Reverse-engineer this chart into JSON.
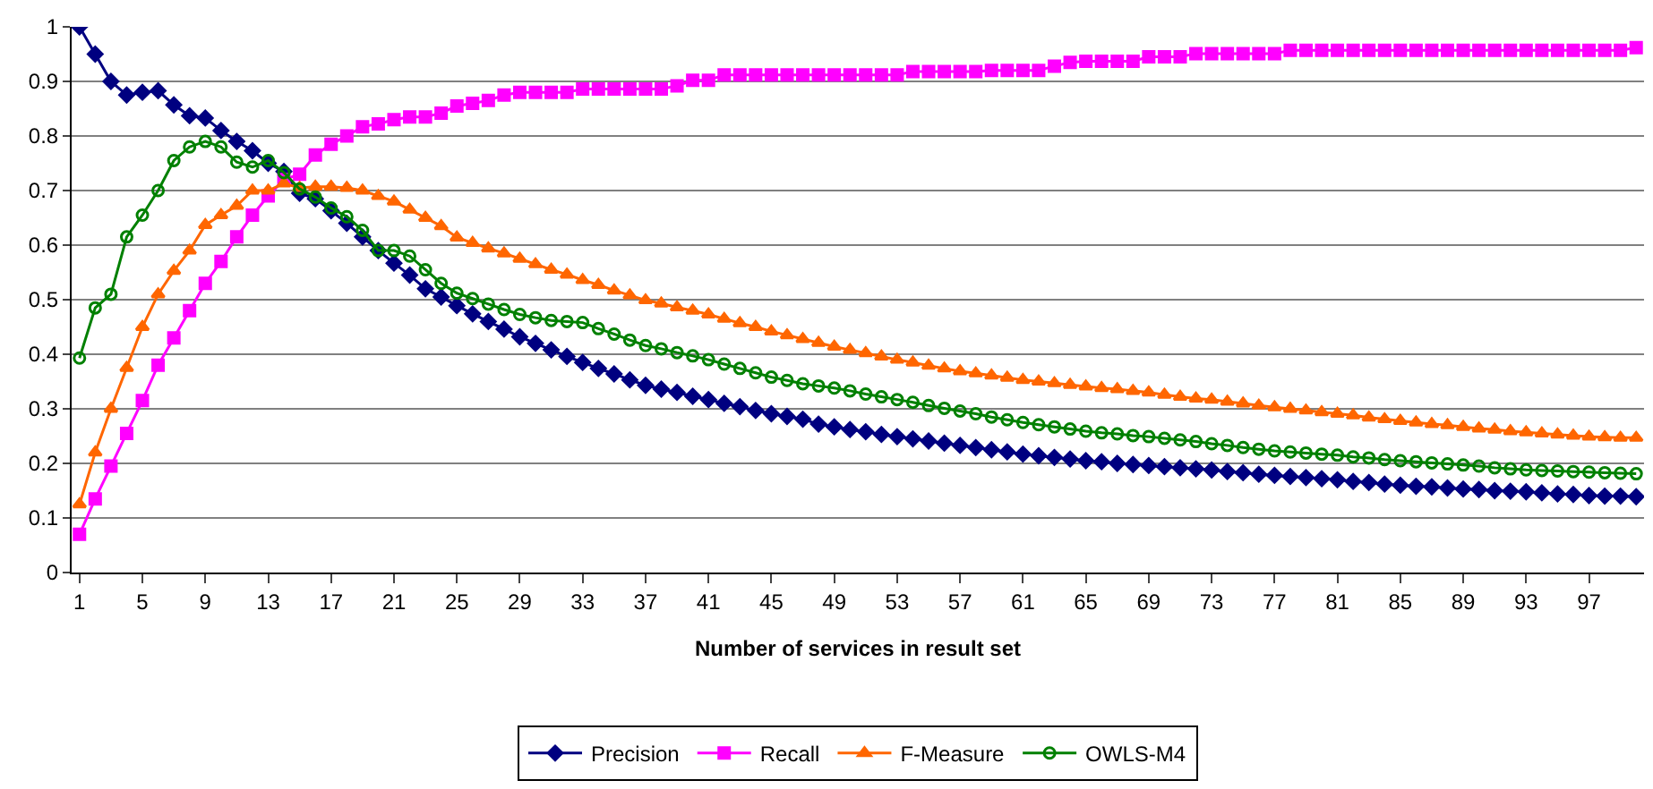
{
  "chart_data": {
    "type": "line",
    "xlabel": "Number of services in result set",
    "categories": [
      "1",
      null,
      null,
      null,
      "5",
      null,
      null,
      null,
      "9",
      null,
      null,
      null,
      "13",
      null,
      null,
      null,
      "17",
      null,
      null,
      null,
      "21",
      null,
      null,
      null,
      "25",
      null,
      null,
      null,
      "29",
      null,
      null,
      null,
      "33",
      null,
      null,
      null,
      "37",
      null,
      null,
      null,
      "41",
      null,
      null,
      null,
      "45",
      null,
      null,
      null,
      "49",
      null,
      null,
      null,
      "53",
      null,
      null,
      null,
      "57",
      null,
      null,
      null,
      "61",
      null,
      null,
      null,
      "65",
      null,
      null,
      null,
      "69",
      null,
      null,
      null,
      "73",
      null,
      null,
      null,
      "77",
      null,
      null,
      null,
      "81",
      null,
      null,
      null,
      "85",
      null,
      null,
      null,
      "89",
      null,
      null,
      null,
      "93",
      null,
      null,
      null,
      "97",
      null,
      null,
      null
    ],
    "ylim": [
      0,
      1
    ],
    "yticks": [
      0,
      0.1,
      0.2,
      0.3,
      0.4,
      0.5,
      0.6,
      0.7,
      0.8,
      0.9,
      1
    ],
    "grid": "y",
    "legend": "bottom",
    "line_style": "solid",
    "series": [
      {
        "name": "Precision",
        "color": "#000080",
        "marker": "diamond",
        "values": [
          1.0,
          0.95,
          0.9,
          0.875,
          0.88,
          0.883,
          0.857,
          0.837,
          0.833,
          0.81,
          0.79,
          0.773,
          0.75,
          0.735,
          0.695,
          0.685,
          0.663,
          0.64,
          0.615,
          0.59,
          0.567,
          0.545,
          0.52,
          0.505,
          0.489,
          0.474,
          0.46,
          0.446,
          0.432,
          0.42,
          0.408,
          0.396,
          0.385,
          0.374,
          0.364,
          0.353,
          0.343,
          0.336,
          0.33,
          0.323,
          0.317,
          0.31,
          0.304,
          0.297,
          0.291,
          0.286,
          0.281,
          0.272,
          0.267,
          0.262,
          0.258,
          0.253,
          0.249,
          0.245,
          0.241,
          0.237,
          0.233,
          0.229,
          0.225,
          0.221,
          0.217,
          0.214,
          0.211,
          0.208,
          0.205,
          0.203,
          0.2,
          0.198,
          0.196,
          0.194,
          0.192,
          0.19,
          0.188,
          0.185,
          0.183,
          0.18,
          0.178,
          0.176,
          0.174,
          0.172,
          0.17,
          0.167,
          0.165,
          0.162,
          0.16,
          0.158,
          0.157,
          0.155,
          0.153,
          0.152,
          0.15,
          0.149,
          0.148,
          0.146,
          0.144,
          0.143,
          0.141,
          0.14,
          0.14,
          0.139
        ]
      },
      {
        "name": "Recall",
        "color": "#ff00ff",
        "marker": "square",
        "values": [
          0.07,
          0.135,
          0.195,
          0.255,
          0.315,
          0.38,
          0.43,
          0.48,
          0.53,
          0.57,
          0.615,
          0.655,
          0.69,
          0.72,
          0.73,
          0.765,
          0.785,
          0.8,
          0.817,
          0.822,
          0.83,
          0.835,
          0.835,
          0.842,
          0.855,
          0.86,
          0.865,
          0.875,
          0.88,
          0.88,
          0.88,
          0.88,
          0.886,
          0.886,
          0.886,
          0.886,
          0.886,
          0.886,
          0.892,
          0.902,
          0.902,
          0.912,
          0.912,
          0.912,
          0.912,
          0.912,
          0.912,
          0.912,
          0.912,
          0.912,
          0.912,
          0.912,
          0.912,
          0.918,
          0.918,
          0.918,
          0.918,
          0.918,
          0.92,
          0.92,
          0.92,
          0.92,
          0.928,
          0.935,
          0.937,
          0.937,
          0.937,
          0.937,
          0.945,
          0.945,
          0.945,
          0.951,
          0.951,
          0.951,
          0.951,
          0.951,
          0.951,
          0.957,
          0.957,
          0.957,
          0.957,
          0.957,
          0.957,
          0.957,
          0.957,
          0.957,
          0.957,
          0.957,
          0.957,
          0.957,
          0.957,
          0.957,
          0.957,
          0.957,
          0.957,
          0.957,
          0.957,
          0.957,
          0.957,
          0.962
        ]
      },
      {
        "name": "F-Measure",
        "color": "#ff6600",
        "marker": "triangle",
        "values": [
          0.125,
          0.22,
          0.3,
          0.375,
          0.45,
          0.51,
          0.553,
          0.59,
          0.637,
          0.655,
          0.672,
          0.7,
          0.7,
          0.713,
          0.705,
          0.707,
          0.707,
          0.705,
          0.7,
          0.69,
          0.68,
          0.665,
          0.65,
          0.635,
          0.614,
          0.604,
          0.594,
          0.585,
          0.575,
          0.565,
          0.555,
          0.546,
          0.536,
          0.527,
          0.517,
          0.508,
          0.499,
          0.493,
          0.486,
          0.48,
          0.473,
          0.465,
          0.457,
          0.45,
          0.442,
          0.435,
          0.428,
          0.421,
          0.414,
          0.408,
          0.402,
          0.396,
          0.39,
          0.385,
          0.379,
          0.374,
          0.369,
          0.365,
          0.361,
          0.357,
          0.353,
          0.35,
          0.347,
          0.344,
          0.341,
          0.338,
          0.336,
          0.333,
          0.33,
          0.326,
          0.322,
          0.319,
          0.317,
          0.313,
          0.31,
          0.306,
          0.303,
          0.3,
          0.297,
          0.294,
          0.291,
          0.288,
          0.284,
          0.281,
          0.278,
          0.275,
          0.272,
          0.27,
          0.267,
          0.264,
          0.262,
          0.259,
          0.257,
          0.255,
          0.253,
          0.251,
          0.249,
          0.248,
          0.247,
          0.247
        ]
      },
      {
        "name": "OWLS-M4",
        "color": "#008000",
        "marker": "circle",
        "values": [
          0.393,
          0.485,
          0.51,
          0.615,
          0.655,
          0.7,
          0.755,
          0.78,
          0.79,
          0.78,
          0.752,
          0.743,
          0.755,
          0.733,
          0.703,
          0.688,
          0.668,
          0.652,
          0.627,
          0.59,
          0.59,
          0.58,
          0.555,
          0.53,
          0.512,
          0.502,
          0.492,
          0.482,
          0.473,
          0.467,
          0.462,
          0.46,
          0.458,
          0.447,
          0.437,
          0.426,
          0.416,
          0.41,
          0.403,
          0.397,
          0.39,
          0.382,
          0.374,
          0.366,
          0.358,
          0.352,
          0.346,
          0.342,
          0.338,
          0.333,
          0.327,
          0.322,
          0.317,
          0.312,
          0.306,
          0.301,
          0.296,
          0.291,
          0.285,
          0.28,
          0.275,
          0.271,
          0.267,
          0.263,
          0.259,
          0.256,
          0.254,
          0.251,
          0.249,
          0.246,
          0.243,
          0.24,
          0.236,
          0.233,
          0.229,
          0.226,
          0.223,
          0.221,
          0.219,
          0.217,
          0.215,
          0.212,
          0.21,
          0.207,
          0.205,
          0.203,
          0.201,
          0.199,
          0.197,
          0.195,
          0.192,
          0.19,
          0.188,
          0.187,
          0.186,
          0.185,
          0.184,
          0.183,
          0.182,
          0.181
        ]
      }
    ]
  }
}
